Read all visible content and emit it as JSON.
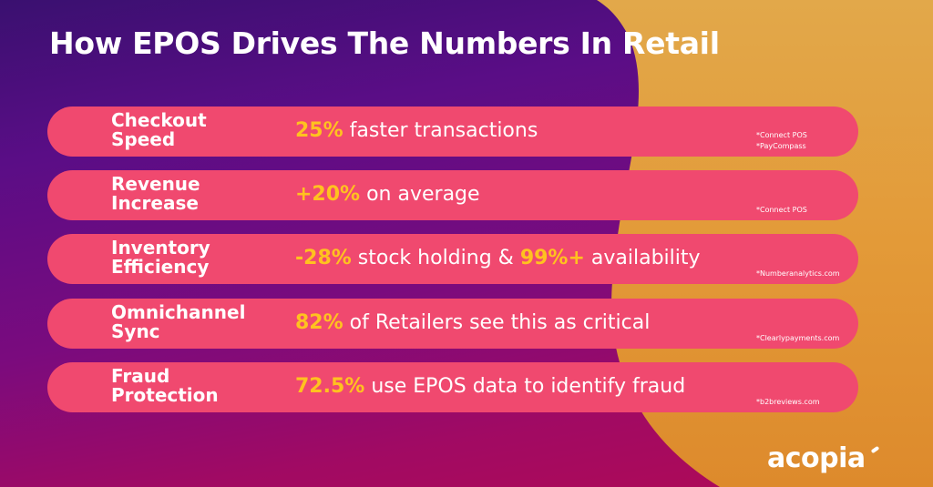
{
  "title": "How EPOS Drives The Numbers In Retail",
  "rows": [
    {
      "label_line1": "Checkout",
      "label_line2": "Speed",
      "highlight1": "25%",
      "text1": " faster transactions",
      "highlight2": "",
      "text2": "",
      "source1": "*Connect POS",
      "source2": "*PayCompass"
    },
    {
      "label_line1": "Revenue",
      "label_line2": "Increase",
      "highlight1": "+20%",
      "text1": " on average",
      "highlight2": "",
      "text2": "",
      "source1": "*Connect POS",
      "source2": ""
    },
    {
      "label_line1": "Inventory",
      "label_line2": "Efficiency",
      "highlight1": "-28%",
      "text1": " stock holding & ",
      "highlight2": "99%+",
      "text2": " availability",
      "source1": "*Numberanalytics.com",
      "source2": ""
    },
    {
      "label_line1": "Omnichannel",
      "label_line2": "Sync",
      "highlight1": "82%",
      "text1": " of Retailers see this as critical",
      "highlight2": "",
      "text2": "",
      "source1": "*Clearlypayments.com",
      "source2": ""
    },
    {
      "label_line1": "Fraud",
      "label_line2": "Protection",
      "highlight1": "72.5%",
      "text1": " use EPOS data to identify fraud",
      "highlight2": "",
      "text2": "",
      "source1": "*b2breviews.com",
      "source2": ""
    }
  ],
  "logo": "acopia",
  "colors": {
    "row_background": "#f0496f",
    "highlight": "#ffc21f",
    "arc": "#e8a035",
    "text": "#ffffff"
  }
}
